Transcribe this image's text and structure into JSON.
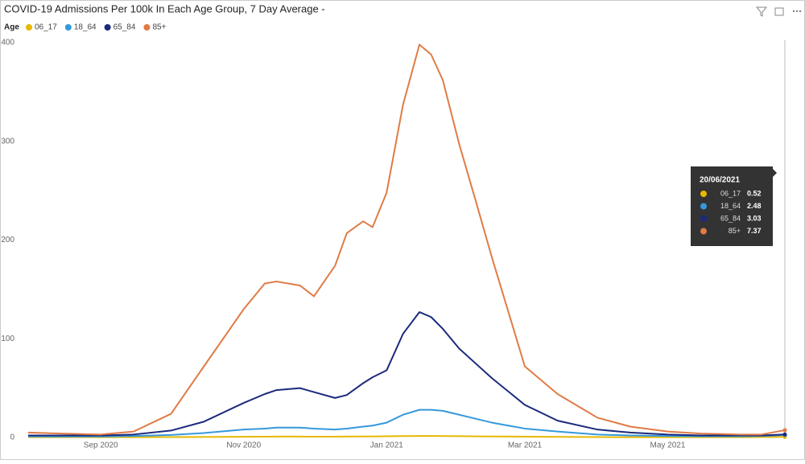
{
  "chart_data": {
    "type": "line",
    "title": "COVID-19 Admissions Per 100k In Each Age Group, 7 Day Average -",
    "legend_title": "Age",
    "x": [
      "01/08/2020",
      "15/08/2020",
      "01/09/2020",
      "15/09/2020",
      "01/10/2020",
      "15/10/2020",
      "01/11/2020",
      "10/11/2020",
      "15/11/2020",
      "25/11/2020",
      "01/12/2020",
      "10/12/2020",
      "15/12/2020",
      "22/12/2020",
      "26/12/2020",
      "01/01/2021",
      "08/01/2021",
      "15/01/2021",
      "20/01/2021",
      "25/01/2021",
      "01/02/2021",
      "08/02/2021",
      "15/02/2021",
      "01/03/2021",
      "15/03/2021",
      "01/04/2021",
      "15/04/2021",
      "01/05/2021",
      "15/05/2021",
      "01/06/2021",
      "10/06/2021",
      "20/06/2021"
    ],
    "series": [
      {
        "name": "06_17",
        "color": "#e6b800",
        "values": [
          0.3,
          0.3,
          0.3,
          0.3,
          0.4,
          0.5,
          0.7,
          0.8,
          0.9,
          0.9,
          0.8,
          0.8,
          0.9,
          1.0,
          1.0,
          1.2,
          1.4,
          1.5,
          1.5,
          1.4,
          1.3,
          1.1,
          1.0,
          0.8,
          0.6,
          0.4,
          0.3,
          0.3,
          0.3,
          0.3,
          0.4,
          0.52
        ]
      },
      {
        "name": "18_64",
        "color": "#3599dc",
        "values": [
          1,
          1,
          1,
          1.5,
          2.5,
          4.5,
          8,
          9,
          10,
          10,
          9,
          8,
          9,
          11,
          12,
          15,
          23,
          28,
          28,
          27,
          23,
          19,
          15,
          9,
          6,
          3,
          2,
          1.5,
          1.2,
          1.2,
          1.5,
          2.48
        ]
      },
      {
        "name": "65_84",
        "color": "#1b2a7c",
        "values": [
          2,
          2,
          2,
          3,
          7,
          16,
          35,
          44,
          48,
          50,
          46,
          40,
          43,
          55,
          61,
          68,
          105,
          127,
          122,
          110,
          90,
          75,
          60,
          33,
          17,
          8,
          5,
          3,
          2,
          2,
          2,
          3.03
        ]
      },
      {
        "name": "85+",
        "color": "#e07b45",
        "values": [
          5,
          4,
          3,
          6,
          24,
          72,
          130,
          156,
          158,
          154,
          143,
          174,
          207,
          219,
          213,
          248,
          337,
          398,
          388,
          362,
          297,
          240,
          182,
          72,
          44,
          20,
          11,
          6,
          4,
          3,
          3,
          7.37
        ]
      }
    ],
    "xlim": [
      "01/08/2020",
      "20/06/2021"
    ],
    "xticks": [
      {
        "value": "01/09/2020",
        "label": "Sep 2020"
      },
      {
        "value": "01/11/2020",
        "label": "Nov 2020"
      },
      {
        "value": "01/01/2021",
        "label": "Jan 2021"
      },
      {
        "value": "01/03/2021",
        "label": "Mar 2021"
      },
      {
        "value": "01/05/2021",
        "label": "May 2021"
      }
    ],
    "ylim": [
      0,
      400
    ],
    "yticks": [
      0,
      100,
      200,
      300,
      400
    ],
    "grid": false
  }
}
